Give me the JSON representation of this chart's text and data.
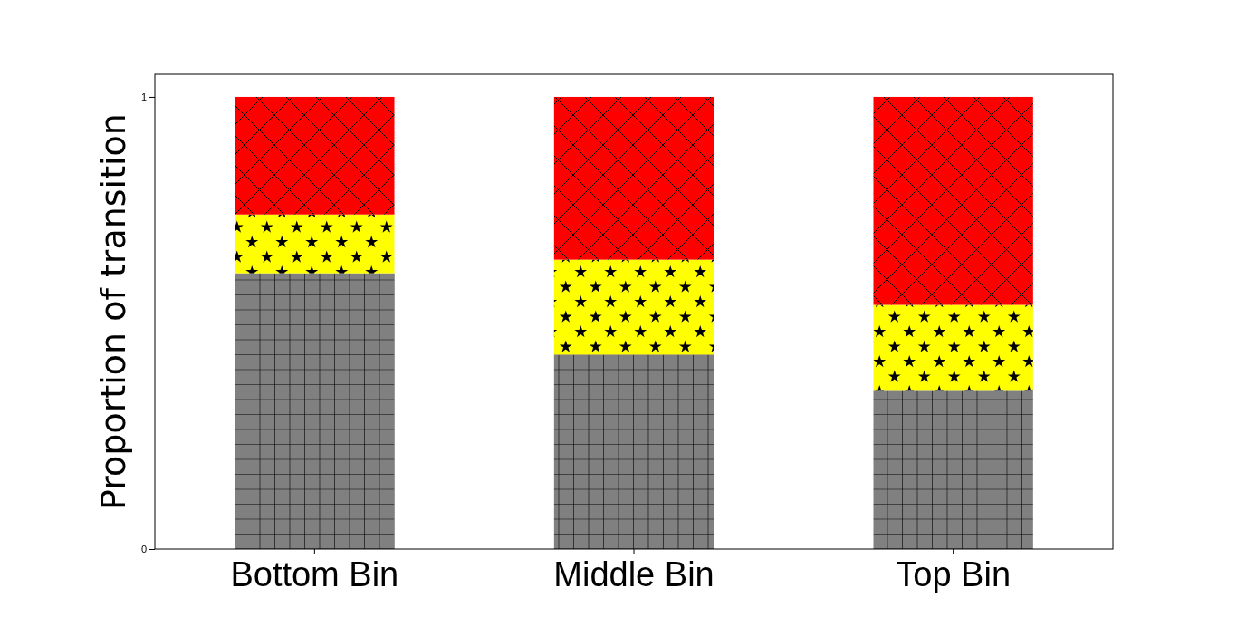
{
  "chart_data": {
    "type": "bar",
    "stacked": true,
    "ylabel": "Proportion of transition",
    "categories": [
      "Bottom Bin",
      "Middle Bin",
      "Top Bin"
    ],
    "series": [
      {
        "color": "#808080",
        "values": [
          0.61,
          0.43,
          0.35
        ]
      },
      {
        "color": "#ffff00",
        "values": [
          0.13,
          0.21,
          0.19
        ]
      },
      {
        "color": "#ff0000",
        "values": [
          0.26,
          0.36,
          0.46
        ]
      }
    ],
    "ylim": [
      0,
      1.05
    ],
    "yticks": [
      0,
      1
    ],
    "grid": false
  }
}
